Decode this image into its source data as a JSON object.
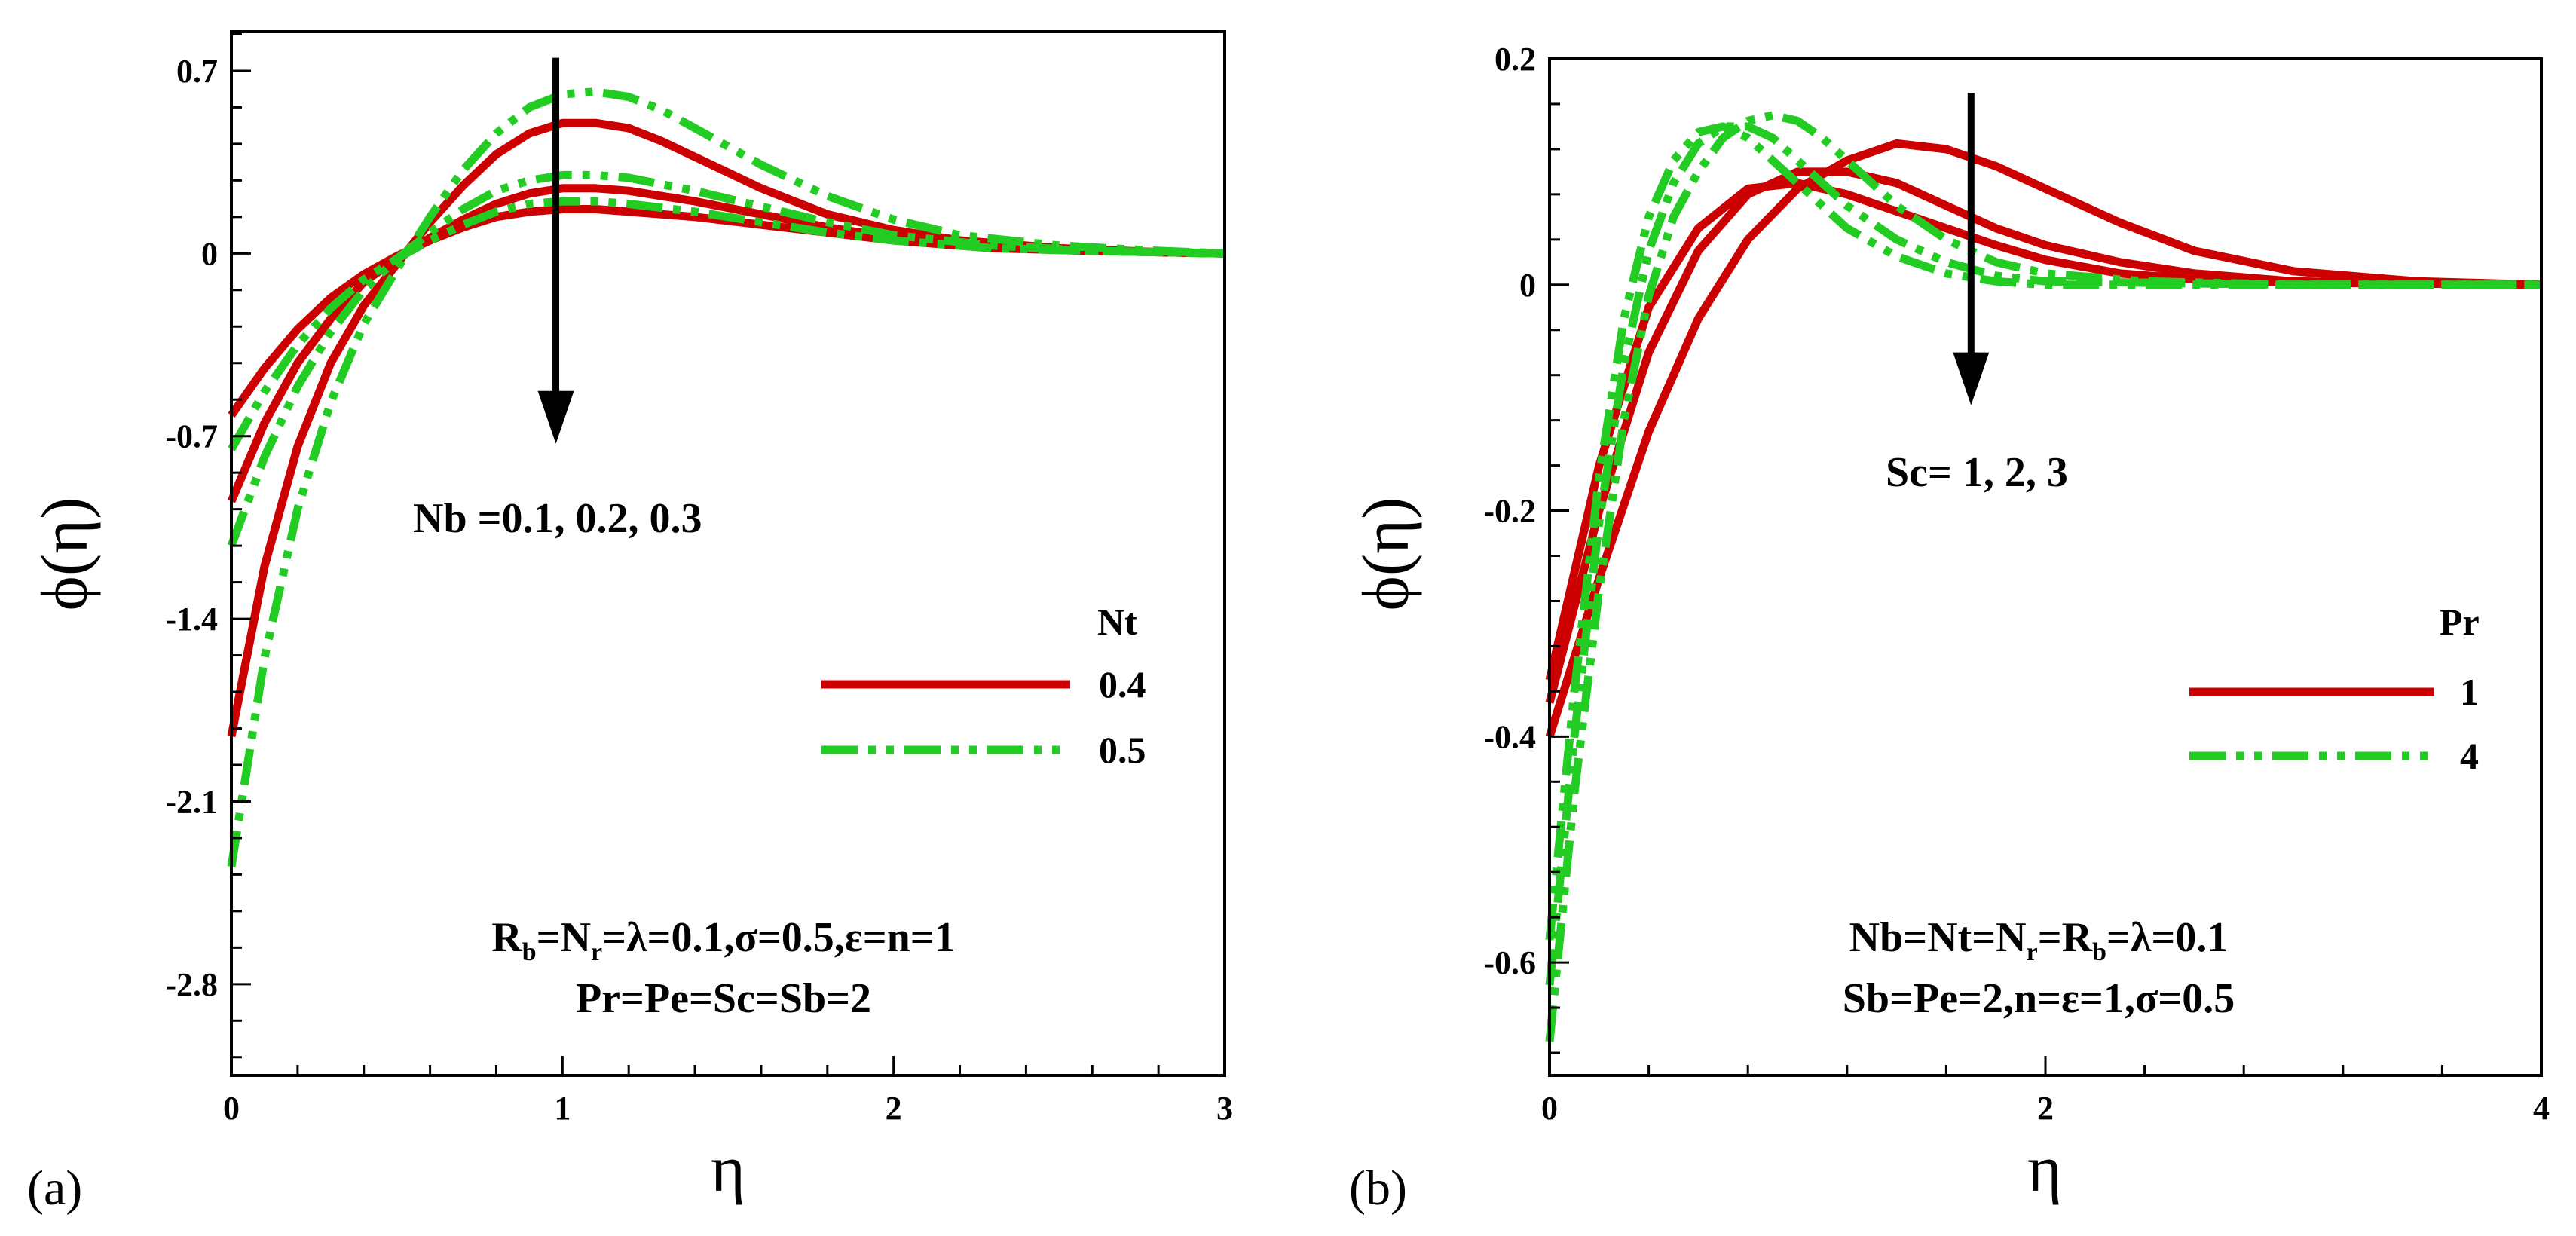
{
  "colors": {
    "red": "#cc0000",
    "green": "#22cc22",
    "black": "#000000"
  },
  "chart_data": [
    {
      "panel": "(a)",
      "type": "line",
      "xlabel": "η",
      "ylabel": "ϕ(η)",
      "xlim": [
        0,
        3
      ],
      "ylim": [
        -3.15,
        0.85
      ],
      "xticks": [
        0,
        1,
        2,
        3
      ],
      "xtick_labels": [
        "0",
        "1",
        "2",
        "3"
      ],
      "yticks": [
        0.7,
        0,
        -0.7,
        -1.4,
        -2.1,
        -2.8
      ],
      "ytick_labels": [
        "0.7",
        "0",
        "-0.7",
        "-1.4",
        "-2.1",
        "-2.8"
      ],
      "annotation": "Nb =0.1, 0.2, 0.3",
      "arrow": {
        "from": [
          0.98,
          0.75
        ],
        "to": [
          0.98,
          -0.7
        ]
      },
      "legend": {
        "title": "Nt",
        "entries": [
          "0.4",
          "0.5"
        ],
        "position": "right"
      },
      "params_line1": {
        "parts": [
          "R",
          "b",
          "=N",
          "r",
          "=λ=0.1,σ=0.5,ε=n=1"
        ]
      },
      "params_line2": "Pr=Pe=Sc=Sb=2",
      "series": [
        {
          "name": "Nt=0.4, Nb=0.1",
          "group": "0.4",
          "points": [
            [
              0,
              -1.85
            ],
            [
              0.1,
              -1.2
            ],
            [
              0.2,
              -0.74
            ],
            [
              0.3,
              -0.42
            ],
            [
              0.4,
              -0.2
            ],
            [
              0.5,
              -0.04
            ],
            [
              0.6,
              0.12
            ],
            [
              0.7,
              0.26
            ],
            [
              0.8,
              0.38
            ],
            [
              0.9,
              0.46
            ],
            [
              1.0,
              0.5
            ],
            [
              1.1,
              0.5
            ],
            [
              1.2,
              0.48
            ],
            [
              1.3,
              0.43
            ],
            [
              1.4,
              0.37
            ],
            [
              1.5,
              0.31
            ],
            [
              1.6,
              0.25
            ],
            [
              1.8,
              0.15
            ],
            [
              2.0,
              0.09
            ],
            [
              2.2,
              0.05
            ],
            [
              2.5,
              0.02
            ],
            [
              2.8,
              0.005
            ],
            [
              3.0,
              0.0
            ]
          ]
        },
        {
          "name": "Nt=0.4, Nb=0.2",
          "group": "0.4",
          "points": [
            [
              0,
              -0.95
            ],
            [
              0.1,
              -0.65
            ],
            [
              0.2,
              -0.42
            ],
            [
              0.3,
              -0.25
            ],
            [
              0.4,
              -0.11
            ],
            [
              0.5,
              -0.02
            ],
            [
              0.6,
              0.06
            ],
            [
              0.7,
              0.13
            ],
            [
              0.8,
              0.19
            ],
            [
              0.9,
              0.23
            ],
            [
              1.0,
              0.25
            ],
            [
              1.1,
              0.25
            ],
            [
              1.2,
              0.24
            ],
            [
              1.4,
              0.2
            ],
            [
              1.6,
              0.15
            ],
            [
              1.8,
              0.1
            ],
            [
              2.0,
              0.06
            ],
            [
              2.3,
              0.03
            ],
            [
              2.6,
              0.01
            ],
            [
              3.0,
              0.0
            ]
          ]
        },
        {
          "name": "Nt=0.4, Nb=0.3",
          "group": "0.4",
          "points": [
            [
              0,
              -0.62
            ],
            [
              0.1,
              -0.44
            ],
            [
              0.2,
              -0.29
            ],
            [
              0.3,
              -0.17
            ],
            [
              0.4,
              -0.08
            ],
            [
              0.5,
              -0.01
            ],
            [
              0.6,
              0.05
            ],
            [
              0.7,
              0.1
            ],
            [
              0.8,
              0.14
            ],
            [
              0.9,
              0.16
            ],
            [
              1.0,
              0.17
            ],
            [
              1.1,
              0.17
            ],
            [
              1.2,
              0.16
            ],
            [
              1.4,
              0.14
            ],
            [
              1.6,
              0.11
            ],
            [
              1.8,
              0.08
            ],
            [
              2.0,
              0.05
            ],
            [
              2.3,
              0.02
            ],
            [
              2.6,
              0.01
            ],
            [
              3.0,
              0.0
            ]
          ]
        },
        {
          "name": "Nt=0.5, Nb=0.1",
          "group": "0.5",
          "points": [
            [
              0,
              -2.35
            ],
            [
              0.1,
              -1.55
            ],
            [
              0.2,
              -0.98
            ],
            [
              0.3,
              -0.57
            ],
            [
              0.4,
              -0.27
            ],
            [
              0.5,
              -0.06
            ],
            [
              0.6,
              0.14
            ],
            [
              0.7,
              0.32
            ],
            [
              0.8,
              0.46
            ],
            [
              0.9,
              0.56
            ],
            [
              1.0,
              0.61
            ],
            [
              1.1,
              0.62
            ],
            [
              1.2,
              0.6
            ],
            [
              1.3,
              0.55
            ],
            [
              1.4,
              0.48
            ],
            [
              1.5,
              0.41
            ],
            [
              1.6,
              0.34
            ],
            [
              1.8,
              0.22
            ],
            [
              2.0,
              0.13
            ],
            [
              2.2,
              0.07
            ],
            [
              2.5,
              0.03
            ],
            [
              2.8,
              0.01
            ],
            [
              3.0,
              0.0
            ]
          ]
        },
        {
          "name": "Nt=0.5, Nb=0.2",
          "group": "0.5",
          "points": [
            [
              0,
              -1.12
            ],
            [
              0.1,
              -0.78
            ],
            [
              0.2,
              -0.51
            ],
            [
              0.3,
              -0.3
            ],
            [
              0.4,
              -0.14
            ],
            [
              0.5,
              -0.02
            ],
            [
              0.6,
              0.08
            ],
            [
              0.7,
              0.17
            ],
            [
              0.8,
              0.24
            ],
            [
              0.9,
              0.28
            ],
            [
              1.0,
              0.3
            ],
            [
              1.1,
              0.3
            ],
            [
              1.2,
              0.29
            ],
            [
              1.4,
              0.24
            ],
            [
              1.6,
              0.18
            ],
            [
              1.8,
              0.12
            ],
            [
              2.0,
              0.07
            ],
            [
              2.3,
              0.03
            ],
            [
              2.6,
              0.01
            ],
            [
              3.0,
              0.0
            ]
          ]
        },
        {
          "name": "Nt=0.5, Nb=0.3",
          "group": "0.5",
          "points": [
            [
              0,
              -0.75
            ],
            [
              0.1,
              -0.53
            ],
            [
              0.2,
              -0.35
            ],
            [
              0.3,
              -0.21
            ],
            [
              0.4,
              -0.1
            ],
            [
              0.5,
              -0.02
            ],
            [
              0.6,
              0.05
            ],
            [
              0.7,
              0.11
            ],
            [
              0.8,
              0.16
            ],
            [
              0.9,
              0.19
            ],
            [
              1.0,
              0.2
            ],
            [
              1.1,
              0.2
            ],
            [
              1.2,
              0.19
            ],
            [
              1.4,
              0.16
            ],
            [
              1.6,
              0.12
            ],
            [
              1.8,
              0.08
            ],
            [
              2.0,
              0.05
            ],
            [
              2.3,
              0.02
            ],
            [
              2.6,
              0.01
            ],
            [
              3.0,
              0.0
            ]
          ]
        }
      ]
    },
    {
      "panel": "(b)",
      "type": "line",
      "xlabel": "η",
      "ylabel": "ϕ(η)",
      "xlim": [
        0,
        4
      ],
      "ylim": [
        -0.7,
        0.2
      ],
      "xticks": [
        0,
        2,
        4
      ],
      "xtick_labels": [
        "0",
        "2",
        "4"
      ],
      "yticks": [
        0.2,
        0,
        -0.2,
        -0.4,
        -0.6
      ],
      "ytick_labels": [
        "0.2",
        "0",
        "-0.2",
        "-0.4",
        "-0.6"
      ],
      "annotation": "Sc= 1, 2, 3",
      "arrow": {
        "from": [
          1.7,
          0.17
        ],
        "to": [
          1.7,
          -0.1
        ]
      },
      "legend": {
        "title": "Pr",
        "entries": [
          "1",
          "4"
        ],
        "position": "right"
      },
      "params_line1": {
        "parts": [
          "Nb=Nt=N",
          "r",
          "=R",
          "b",
          "=λ=0.1"
        ]
      },
      "params_line2": "Sb=Pe=2,n=ε=1,σ=0.5",
      "series": [
        {
          "name": "Pr=1, Sc=1",
          "group": "1",
          "points": [
            [
              0,
              -0.4
            ],
            [
              0.2,
              -0.26
            ],
            [
              0.4,
              -0.13
            ],
            [
              0.6,
              -0.03
            ],
            [
              0.8,
              0.04
            ],
            [
              1.0,
              0.085
            ],
            [
              1.2,
              0.11
            ],
            [
              1.4,
              0.125
            ],
            [
              1.6,
              0.12
            ],
            [
              1.8,
              0.105
            ],
            [
              2.0,
              0.085
            ],
            [
              2.3,
              0.055
            ],
            [
              2.6,
              0.03
            ],
            [
              3.0,
              0.012
            ],
            [
              3.5,
              0.003
            ],
            [
              4.0,
              0.0
            ]
          ]
        },
        {
          "name": "Pr=1, Sc=2",
          "group": "1",
          "points": [
            [
              0,
              -0.37
            ],
            [
              0.2,
              -0.2
            ],
            [
              0.4,
              -0.06
            ],
            [
              0.6,
              0.03
            ],
            [
              0.8,
              0.08
            ],
            [
              1.0,
              0.1
            ],
            [
              1.2,
              0.1
            ],
            [
              1.4,
              0.09
            ],
            [
              1.6,
              0.07
            ],
            [
              1.8,
              0.05
            ],
            [
              2.0,
              0.035
            ],
            [
              2.3,
              0.02
            ],
            [
              2.6,
              0.01
            ],
            [
              3.0,
              0.003
            ],
            [
              4.0,
              0.0
            ]
          ]
        },
        {
          "name": "Pr=1, Sc=3",
          "group": "1",
          "points": [
            [
              0,
              -0.35
            ],
            [
              0.2,
              -0.16
            ],
            [
              0.4,
              -0.02
            ],
            [
              0.6,
              0.05
            ],
            [
              0.8,
              0.085
            ],
            [
              1.0,
              0.09
            ],
            [
              1.2,
              0.08
            ],
            [
              1.4,
              0.065
            ],
            [
              1.6,
              0.05
            ],
            [
              1.8,
              0.035
            ],
            [
              2.0,
              0.022
            ],
            [
              2.3,
              0.01
            ],
            [
              2.6,
              0.005
            ],
            [
              3.0,
              0.002
            ],
            [
              4.0,
              0.0
            ]
          ]
        },
        {
          "name": "Pr=4, Sc=1",
          "group": "4",
          "points": [
            [
              0,
              -0.67
            ],
            [
              0.1,
              -0.45
            ],
            [
              0.2,
              -0.27
            ],
            [
              0.3,
              -0.12
            ],
            [
              0.4,
              -0.01
            ],
            [
              0.5,
              0.06
            ],
            [
              0.6,
              0.1
            ],
            [
              0.7,
              0.13
            ],
            [
              0.8,
              0.145
            ],
            [
              0.9,
              0.15
            ],
            [
              1.0,
              0.145
            ],
            [
              1.1,
              0.13
            ],
            [
              1.2,
              0.11
            ],
            [
              1.3,
              0.09
            ],
            [
              1.4,
              0.07
            ],
            [
              1.6,
              0.04
            ],
            [
              1.8,
              0.02
            ],
            [
              2.0,
              0.01
            ],
            [
              2.4,
              0.003
            ],
            [
              3.0,
              0.0
            ],
            [
              4.0,
              0.0
            ]
          ]
        },
        {
          "name": "Pr=4, Sc=2",
          "group": "4",
          "points": [
            [
              0,
              -0.62
            ],
            [
              0.1,
              -0.4
            ],
            [
              0.2,
              -0.21
            ],
            [
              0.3,
              -0.07
            ],
            [
              0.4,
              0.03
            ],
            [
              0.5,
              0.09
            ],
            [
              0.6,
              0.125
            ],
            [
              0.7,
              0.14
            ],
            [
              0.8,
              0.14
            ],
            [
              0.9,
              0.13
            ],
            [
              1.0,
              0.11
            ],
            [
              1.1,
              0.09
            ],
            [
              1.2,
              0.07
            ],
            [
              1.4,
              0.04
            ],
            [
              1.6,
              0.02
            ],
            [
              1.8,
              0.008
            ],
            [
              2.0,
              0.003
            ],
            [
              3.0,
              0.0
            ],
            [
              4.0,
              0.0
            ]
          ]
        },
        {
          "name": "Pr=4, Sc=3",
          "group": "4",
          "points": [
            [
              0,
              -0.58
            ],
            [
              0.1,
              -0.36
            ],
            [
              0.2,
              -0.17
            ],
            [
              0.3,
              -0.03
            ],
            [
              0.4,
              0.06
            ],
            [
              0.5,
              0.11
            ],
            [
              0.6,
              0.135
            ],
            [
              0.7,
              0.14
            ],
            [
              0.8,
              0.13
            ],
            [
              0.9,
              0.11
            ],
            [
              1.0,
              0.09
            ],
            [
              1.1,
              0.07
            ],
            [
              1.2,
              0.05
            ],
            [
              1.4,
              0.025
            ],
            [
              1.6,
              0.01
            ],
            [
              1.8,
              0.003
            ],
            [
              2.0,
              0.0
            ],
            [
              4.0,
              0.0
            ]
          ]
        }
      ]
    }
  ]
}
